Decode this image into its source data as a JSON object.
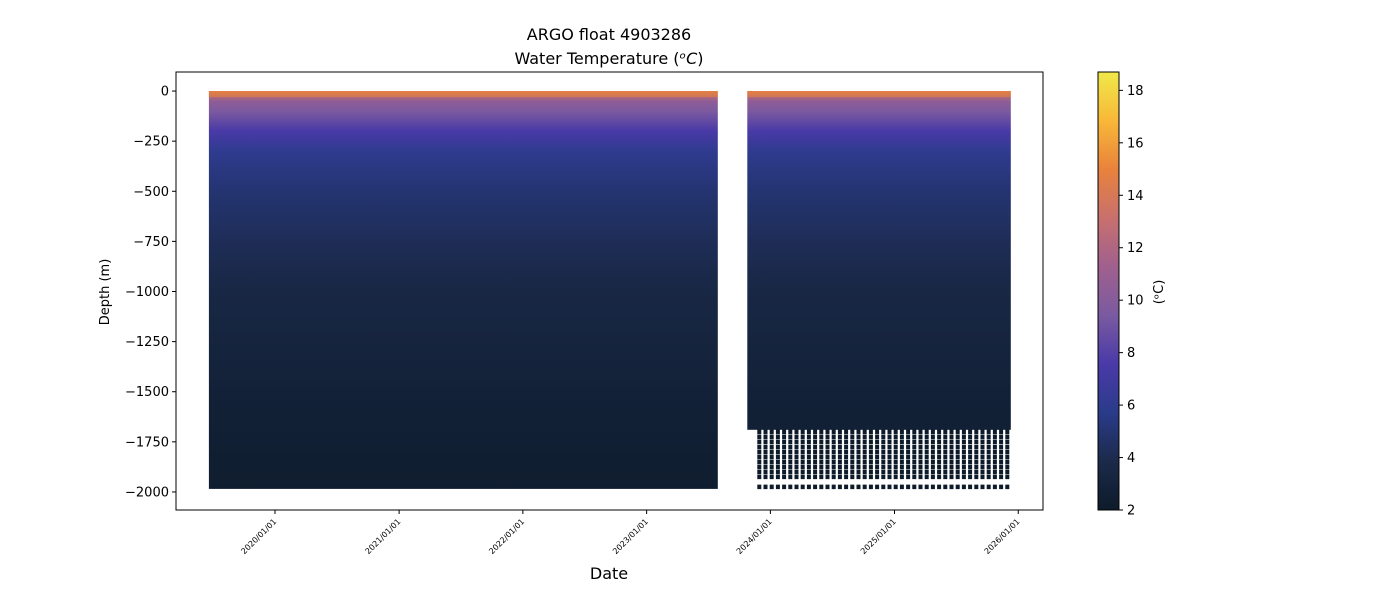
{
  "chart_data": {
    "type": "scatter",
    "title_line1": "ARGO float 4903286",
    "title_line2_prefix": "Water Temperature (",
    "title_line2_unit": "ᵒC",
    "title_line2_suffix": ")",
    "xlabel": "Date",
    "ylabel": "Depth (m)",
    "x_ticks": [
      "2020/01/01",
      "2021/01/01",
      "2022/01/01",
      "2023/01/01",
      "2024/01/01",
      "2025/01/01",
      "2026/01/01"
    ],
    "x_range": [
      "2019-03-15",
      "2026-03-15"
    ],
    "y_ticks": [
      0,
      -250,
      -500,
      -750,
      -1000,
      -1250,
      -1500,
      -1750,
      -2000
    ],
    "y_tick_labels": [
      "0",
      "−250",
      "−500",
      "−750",
      "−1000",
      "−1250",
      "−1500",
      "−1750",
      "−2000"
    ],
    "ylim": [
      -2090,
      95
    ],
    "data_periods": [
      {
        "start": "2019-06-20",
        "end": "2023-07-30",
        "max_depth": -1985
      },
      {
        "start": "2023-10-25",
        "end": "2025-12-10",
        "max_depth": -1690,
        "deep_levels": [
          -1700,
          -1725,
          -1750,
          -1775,
          -1800,
          -1825,
          -1850,
          -1875,
          -1900,
          -1925,
          -1975
        ]
      }
    ],
    "colorbar": {
      "label": "(ᵒC)",
      "min": 2,
      "max": 18.7,
      "ticks": [
        "2",
        "4",
        "6",
        "8",
        "10",
        "12",
        "14",
        "16",
        "18"
      ],
      "tick_values": [
        2,
        4,
        6,
        8,
        10,
        12,
        14,
        16,
        18
      ],
      "colormap": [
        "#0d1b2a",
        "#1b2a4a",
        "#2a3b8a",
        "#4a3aa8",
        "#7a5aa0",
        "#a0608e",
        "#c8706e",
        "#e8823c",
        "#f8b838",
        "#f0e84a"
      ]
    },
    "temperature_profile": [
      {
        "depth": 0,
        "temp": 14.5
      },
      {
        "depth": -50,
        "temp": 10.5
      },
      {
        "depth": -100,
        "temp": 9.5
      },
      {
        "depth": -200,
        "temp": 7.5
      },
      {
        "depth": -300,
        "temp": 6.0
      },
      {
        "depth": -500,
        "temp": 5.0
      },
      {
        "depth": -750,
        "temp": 4.2
      },
      {
        "depth": -1000,
        "temp": 3.5
      },
      {
        "depth": -1500,
        "temp": 2.8
      },
      {
        "depth": -2000,
        "temp": 2.3
      }
    ],
    "grid": false
  }
}
